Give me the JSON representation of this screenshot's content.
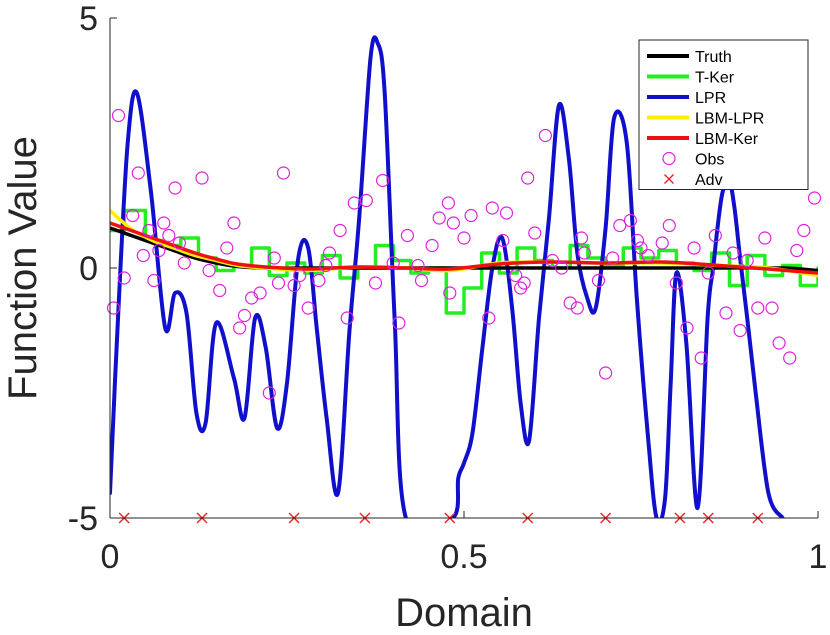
{
  "chart_data": {
    "type": "line",
    "xlabel": "Domain",
    "ylabel": "Function Value",
    "xlim": [
      0,
      1
    ],
    "ylim": [
      -5,
      5
    ],
    "xticks": [
      {
        "v": 0,
        "label": "0"
      },
      {
        "v": 0.5,
        "label": "0.5"
      },
      {
        "v": 1,
        "label": "1"
      }
    ],
    "yticks": [
      {
        "v": -5,
        "label": "-5"
      },
      {
        "v": 0,
        "label": "0"
      },
      {
        "v": 5,
        "label": "5"
      }
    ],
    "grid": false,
    "legend_position": "top-right",
    "series": [
      {
        "name": "Truth",
        "color": "#000000",
        "style": "line",
        "x": [
          0,
          0.03,
          0.06,
          0.09,
          0.12,
          0.15,
          0.18,
          0.22,
          0.28,
          0.35,
          0.45,
          0.55,
          0.65,
          0.75,
          0.85,
          0.95,
          1.0
        ],
        "y": [
          0.8,
          0.65,
          0.5,
          0.35,
          0.2,
          0.1,
          0.03,
          0.0,
          0.0,
          0.0,
          0.0,
          0.0,
          0.0,
          0.0,
          0.0,
          0.0,
          -0.05
        ]
      },
      {
        "name": "T-Ker",
        "color": "#22ee22",
        "style": "step",
        "x": [
          0,
          0.02,
          0.05,
          0.075,
          0.1,
          0.125,
          0.15,
          0.175,
          0.2,
          0.225,
          0.25,
          0.275,
          0.3,
          0.325,
          0.35,
          0.375,
          0.4,
          0.425,
          0.45,
          0.475,
          0.5,
          0.525,
          0.55,
          0.575,
          0.6,
          0.625,
          0.65,
          0.675,
          0.7,
          0.725,
          0.75,
          0.775,
          0.8,
          0.825,
          0.85,
          0.875,
          0.9,
          0.925,
          0.95,
          0.975,
          1.0
        ],
        "y": [
          0.75,
          1.15,
          0.55,
          0.45,
          0.6,
          0.2,
          -0.05,
          0.05,
          0.4,
          -0.15,
          0.1,
          -0.1,
          0.25,
          -0.2,
          0.0,
          0.45,
          0.15,
          -0.1,
          0.0,
          -0.9,
          -0.4,
          0.3,
          -0.1,
          0.4,
          0.15,
          0.0,
          0.45,
          0.2,
          0.05,
          0.4,
          0.2,
          0.35,
          0.1,
          -0.05,
          0.3,
          -0.35,
          0.25,
          -0.15,
          0.05,
          -0.35,
          0.0
        ]
      },
      {
        "name": "LPR",
        "color": "#1010cc",
        "style": "line",
        "x": [
          0.0,
          0.012,
          0.025,
          0.038,
          0.058,
          0.078,
          0.092,
          0.108,
          0.122,
          0.135,
          0.15,
          0.175,
          0.19,
          0.205,
          0.22,
          0.236,
          0.25,
          0.266,
          0.28,
          0.292,
          0.306,
          0.322,
          0.338,
          0.352,
          0.368,
          0.378,
          0.388,
          0.402,
          0.418,
          0.484,
          0.492,
          0.5,
          0.512,
          0.526,
          0.54,
          0.554,
          0.568,
          0.58,
          0.592,
          0.606,
          0.62,
          0.634,
          0.648,
          0.66,
          0.674,
          0.686,
          0.7,
          0.712,
          0.73,
          0.744,
          0.76,
          0.772,
          0.784,
          0.792,
          0.8,
          0.814,
          0.83,
          0.844,
          0.852,
          0.858,
          0.865,
          0.874,
          0.882,
          0.89,
          0.9,
          0.912,
          0.93,
          0.95
        ],
        "y": [
          -4.5,
          -0.8,
          2.5,
          3.5,
          1.5,
          -1.2,
          -0.5,
          -0.9,
          -2.9,
          -3.1,
          -1.1,
          -2.2,
          -3.0,
          -1.0,
          -1.6,
          -3.2,
          -2.3,
          0.2,
          0.4,
          -1.2,
          -3.0,
          -4.5,
          -1.3,
          1.0,
          4.2,
          4.5,
          3.5,
          -1.0,
          -5.0,
          -5.0,
          -4.2,
          -3.9,
          -3.3,
          -1.6,
          0.0,
          0.6,
          -0.8,
          -2.7,
          -3.45,
          -1.0,
          1.0,
          3.25,
          2.2,
          0.3,
          -0.6,
          -0.8,
          0.8,
          3.0,
          2.5,
          -0.6,
          -3.4,
          -5.0,
          -4.6,
          -2.3,
          -0.1,
          -1.5,
          -4.8,
          -1.0,
          0.0,
          0.8,
          1.5,
          1.8,
          1.2,
          0.2,
          -1.0,
          -2.5,
          -4.5,
          -5.0
        ]
      },
      {
        "name": "LBM-LPR",
        "color": "#ffee00",
        "style": "line",
        "x": [
          0,
          0.03,
          0.06,
          0.09,
          0.12,
          0.15,
          0.18,
          0.22,
          0.28,
          0.35,
          0.42,
          0.48,
          0.55,
          0.62,
          0.7,
          0.78,
          0.86,
          0.93,
          1.0
        ],
        "y": [
          1.15,
          0.78,
          0.55,
          0.4,
          0.25,
          0.15,
          0.05,
          0.0,
          -0.05,
          0.02,
          0.0,
          -0.05,
          0.1,
          0.12,
          0.1,
          0.1,
          0.05,
          0.0,
          -0.15
        ]
      },
      {
        "name": "LBM-Ker",
        "color": "#ee1111",
        "style": "line",
        "x": [
          0,
          0.03,
          0.06,
          0.09,
          0.12,
          0.15,
          0.18,
          0.22,
          0.28,
          0.35,
          0.42,
          0.48,
          0.55,
          0.62,
          0.7,
          0.78,
          0.86,
          0.93,
          1.0
        ],
        "y": [
          0.9,
          0.75,
          0.6,
          0.45,
          0.3,
          0.18,
          0.08,
          0.02,
          -0.02,
          0.02,
          0.0,
          -0.02,
          0.08,
          0.12,
          0.1,
          0.12,
          0.05,
          -0.02,
          -0.1
        ]
      },
      {
        "name": "Obs",
        "color": "#dd22dd",
        "style": "circle",
        "x": [
          0.005,
          0.012,
          0.02,
          0.032,
          0.04,
          0.047,
          0.055,
          0.062,
          0.069,
          0.076,
          0.083,
          0.092,
          0.098,
          0.105,
          0.13,
          0.14,
          0.155,
          0.165,
          0.175,
          0.183,
          0.19,
          0.2,
          0.212,
          0.225,
          0.232,
          0.238,
          0.245,
          0.26,
          0.268,
          0.28,
          0.295,
          0.305,
          0.31,
          0.325,
          0.335,
          0.345,
          0.362,
          0.375,
          0.385,
          0.4,
          0.408,
          0.42,
          0.435,
          0.44,
          0.455,
          0.465,
          0.478,
          0.48,
          0.485,
          0.5,
          0.51,
          0.535,
          0.54,
          0.555,
          0.56,
          0.573,
          0.58,
          0.585,
          0.59,
          0.6,
          0.615,
          0.625,
          0.638,
          0.65,
          0.66,
          0.666,
          0.67,
          0.69,
          0.7,
          0.71,
          0.72,
          0.735,
          0.745,
          0.75,
          0.76,
          0.78,
          0.79,
          0.8,
          0.815,
          0.825,
          0.835,
          0.845,
          0.855,
          0.87,
          0.88,
          0.89,
          0.9,
          0.915,
          0.925,
          0.935,
          0.945,
          0.96,
          0.97,
          0.98,
          0.995
        ],
        "y": [
          -0.8,
          3.05,
          -0.2,
          1.05,
          1.9,
          0.25,
          0.75,
          -0.25,
          0.35,
          0.9,
          0.65,
          1.6,
          0.5,
          0.1,
          1.8,
          -0.05,
          -0.45,
          0.4,
          0.9,
          -1.2,
          -0.95,
          -0.6,
          -0.5,
          -2.5,
          0.2,
          -0.3,
          1.9,
          -0.35,
          -0.15,
          -0.8,
          -0.25,
          0.05,
          0.3,
          0.75,
          -1.0,
          1.3,
          1.35,
          -0.3,
          1.75,
          0.1,
          -1.1,
          0.65,
          0.05,
          -0.25,
          0.45,
          1.0,
          1.3,
          -0.5,
          0.9,
          0.6,
          1.05,
          -1.0,
          1.2,
          0.55,
          1.1,
          -0.15,
          -0.4,
          -0.3,
          1.8,
          0.7,
          2.65,
          0.15,
          0.0,
          -0.7,
          -0.8,
          0.6,
          0.3,
          -0.25,
          -2.1,
          0.2,
          0.85,
          0.95,
          0.55,
          0.4,
          0.25,
          0.5,
          0.85,
          -0.3,
          -1.2,
          0.4,
          -1.8,
          -0.1,
          0.65,
          -0.9,
          0.3,
          -1.25,
          0.15,
          -0.8,
          0.6,
          -0.8,
          -1.5,
          -1.8,
          0.35,
          0.75,
          1.4
        ]
      },
      {
        "name": "Adv",
        "color": "#ee2222",
        "style": "cross",
        "x": [
          0.02,
          0.13,
          0.26,
          0.36,
          0.48,
          0.59,
          0.7,
          0.805,
          0.845,
          0.915
        ],
        "y": [
          -5,
          -5,
          -5,
          -5,
          -5,
          -5,
          -5,
          -5,
          -5,
          -5
        ]
      }
    ]
  }
}
